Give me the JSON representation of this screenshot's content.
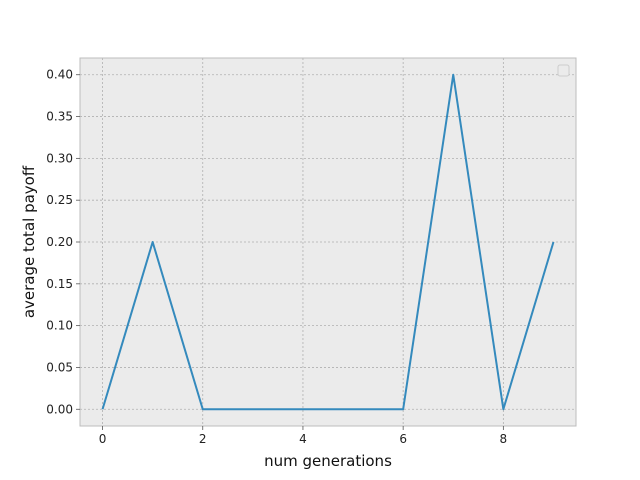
{
  "chart_data": {
    "type": "line",
    "xlabel": "num generations",
    "ylabel": "average total payoff",
    "xlim": [
      -0.45,
      9.45
    ],
    "ylim": [
      -0.02,
      0.42
    ],
    "x_ticks": [
      0,
      2,
      4,
      6,
      8
    ],
    "x_tick_labels": [
      "0",
      "2",
      "4",
      "6",
      "8"
    ],
    "y_ticks": [
      0.0,
      0.05,
      0.1,
      0.15,
      0.2,
      0.25,
      0.3,
      0.35,
      0.4
    ],
    "y_tick_labels": [
      "0.00",
      "0.05",
      "0.10",
      "0.15",
      "0.20",
      "0.25",
      "0.30",
      "0.35",
      "0.40"
    ],
    "grid": true,
    "legend": "top-right (empty)",
    "series": [
      {
        "color": "#348abd",
        "x": [
          0,
          1,
          2,
          3,
          4,
          5,
          6,
          7,
          8,
          9
        ],
        "y": [
          0.0,
          0.2,
          0.0,
          0.0,
          0.0,
          0.0,
          0.0,
          0.4,
          0.0,
          0.2
        ]
      }
    ],
    "colors": {
      "plot_background": "#ebebeb",
      "grid": "#b0b0b0",
      "spine": "#bcbcbc"
    }
  }
}
